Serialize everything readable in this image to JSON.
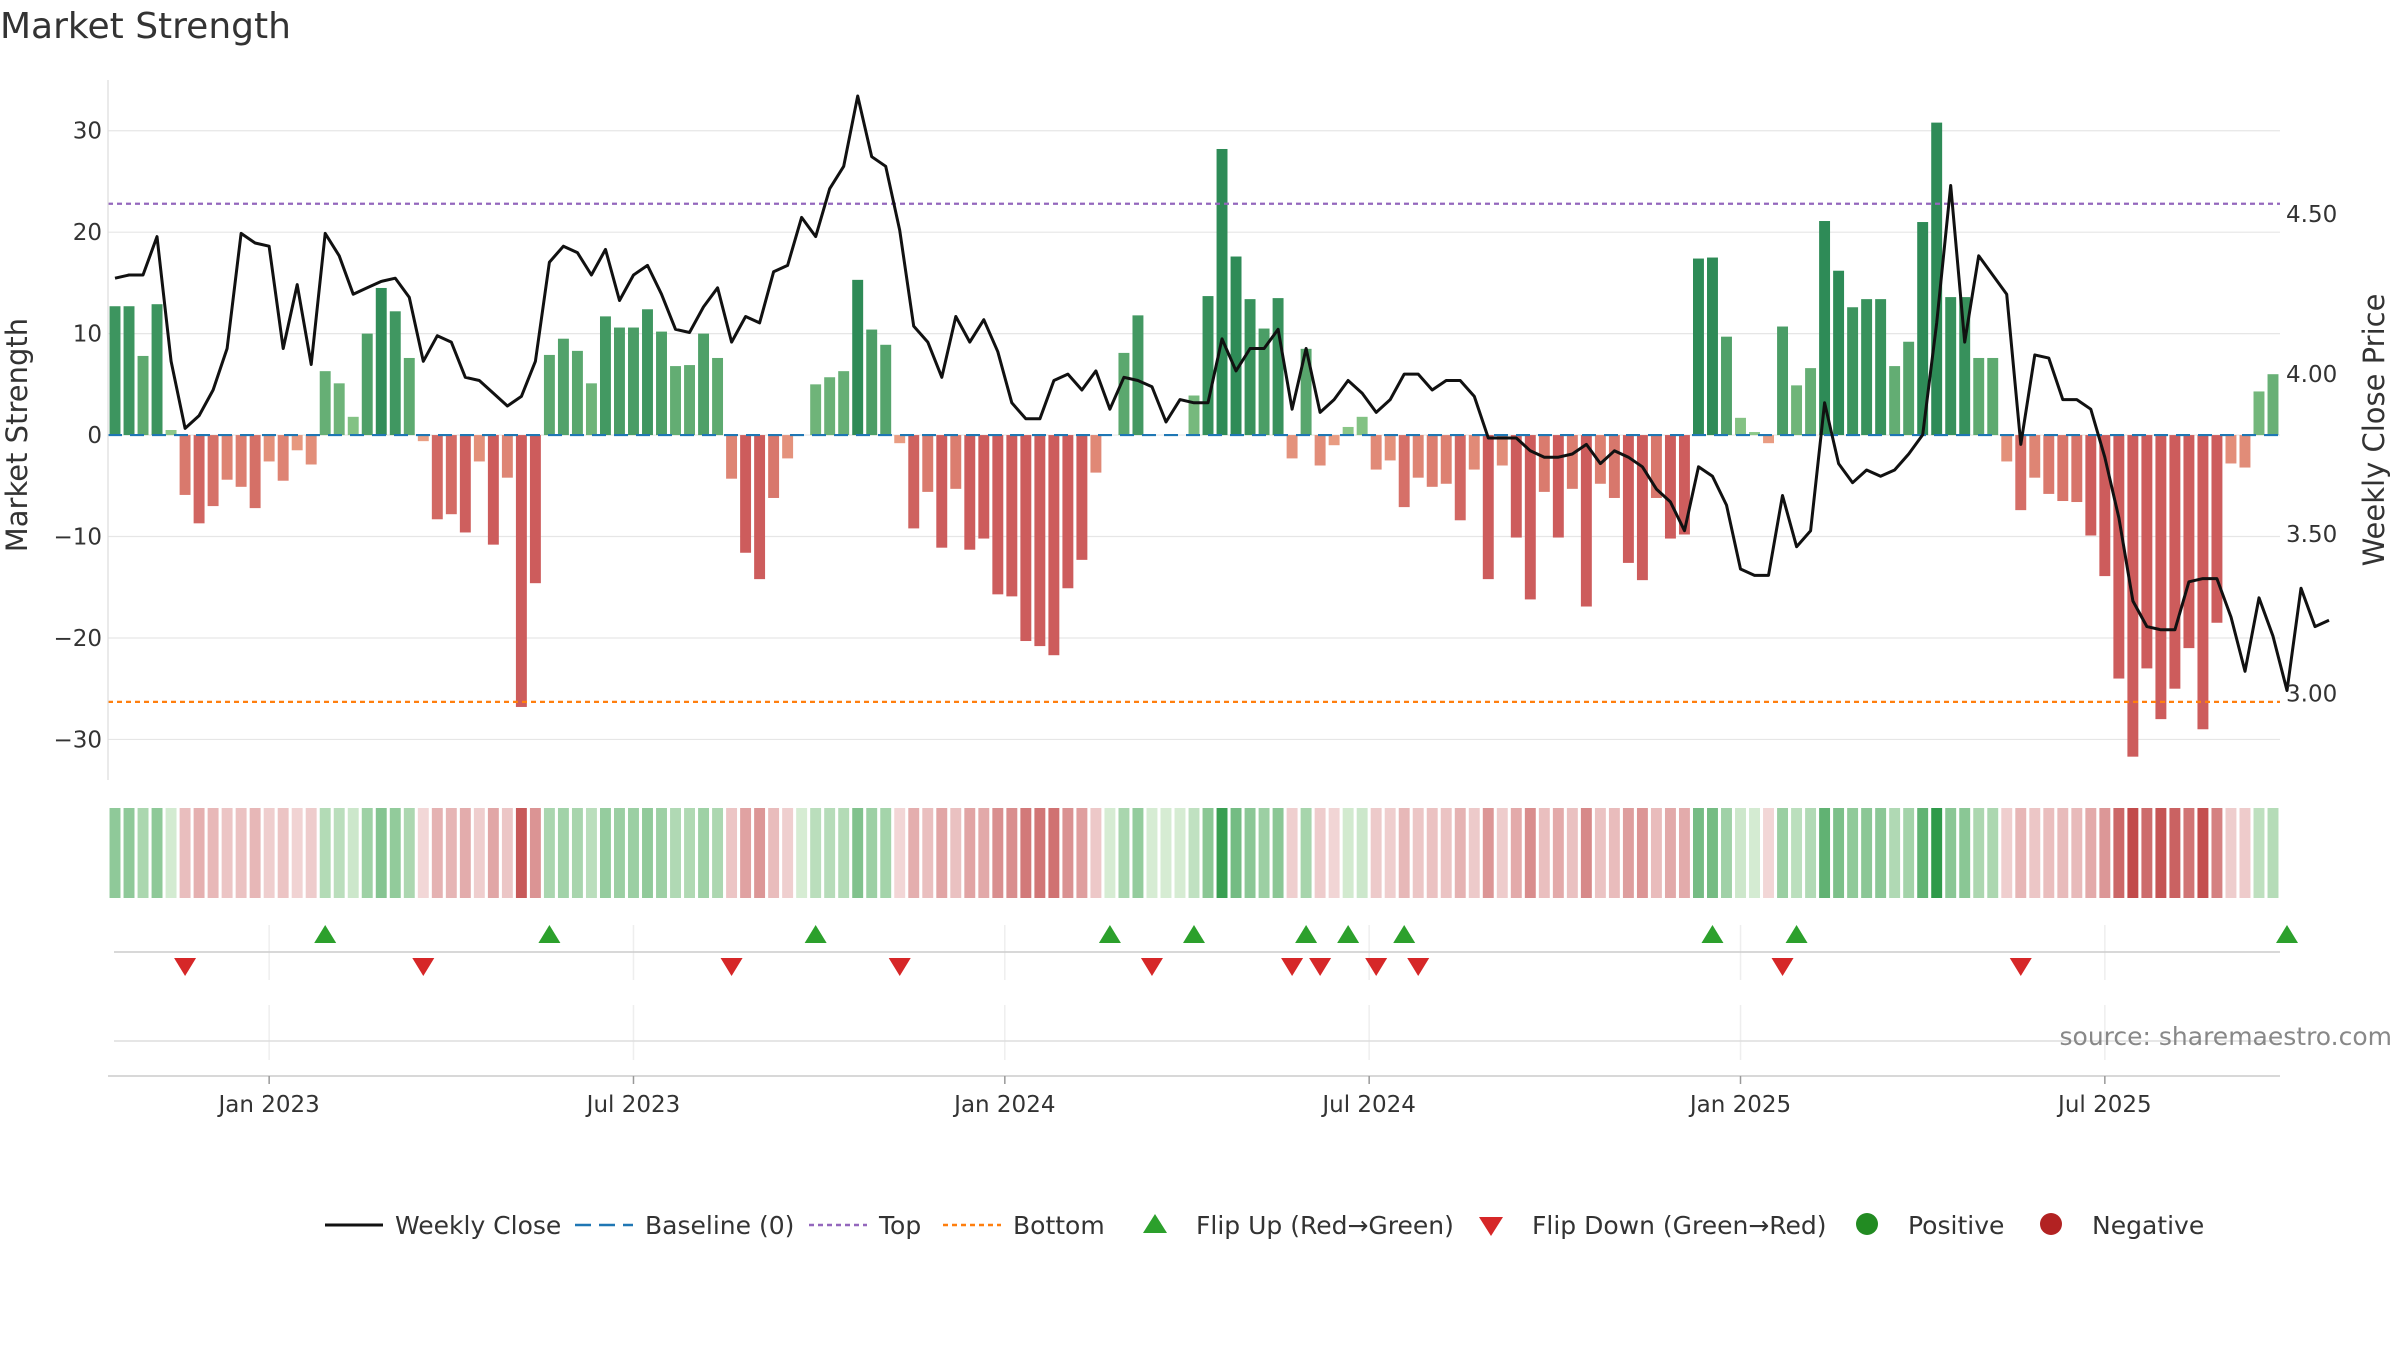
{
  "chart_data": {
    "type": "bar",
    "title": "Market Strength",
    "ylabel": "Market Strength",
    "y2label": "Weekly Close Price",
    "ylim": [
      -34,
      35
    ],
    "y2lim": [
      2.73,
      4.92
    ],
    "yticks": [
      -30,
      -20,
      -10,
      0,
      10,
      20,
      30
    ],
    "yticklabels": [
      "−30",
      "−20",
      "−10",
      "0",
      "10",
      "20",
      "30"
    ],
    "y2ticks": [
      3.0,
      3.5,
      4.0,
      4.5
    ],
    "y2ticklabels": [
      "3.00",
      "3.50",
      "4.00",
      "4.50"
    ],
    "xticks": [
      11,
      37,
      63.5,
      89.5,
      116,
      142
    ],
    "xticklabels": [
      "Jan 2023",
      "Jul 2023",
      "Jan 2024",
      "Jul 2024",
      "Jan 2025",
      "Jul 2025"
    ],
    "top_line": 22.8,
    "bottom_line": -26.3,
    "baseline": 0,
    "strength": [
      12.7,
      12.7,
      7.8,
      12.9,
      0.5,
      -5.9,
      -8.7,
      -7.0,
      -4.4,
      -5.1,
      -7.2,
      -2.6,
      -4.5,
      -1.5,
      -2.9,
      6.3,
      5.1,
      1.8,
      10.0,
      14.5,
      12.2,
      7.6,
      -0.6,
      -8.3,
      -7.8,
      -9.6,
      -2.6,
      -10.8,
      -4.2,
      -26.8,
      -14.6,
      7.9,
      9.5,
      8.3,
      5.1,
      11.7,
      10.6,
      10.6,
      12.4,
      10.2,
      6.8,
      6.9,
      10.0,
      7.6,
      -4.3,
      -11.6,
      -14.2,
      -6.2,
      -2.3,
      0,
      5.0,
      5.7,
      6.3,
      15.3,
      10.4,
      8.9,
      -0.8,
      -9.2,
      -5.6,
      -11.1,
      -5.3,
      -11.3,
      -10.2,
      -15.7,
      -15.9,
      -20.3,
      -20.8,
      -21.7,
      -15.1,
      -12.3,
      -3.7,
      0,
      8.1,
      11.8,
      0,
      0,
      0,
      3.9,
      13.7,
      28.2,
      17.6,
      13.4,
      10.5,
      13.5,
      -2.3,
      8.5,
      -3.0,
      -1.0,
      0.8,
      1.8,
      -3.4,
      -2.5,
      -7.1,
      -4.2,
      -5.1,
      -4.8,
      -8.4,
      -3.4,
      -14.2,
      -3.0,
      -10.1,
      -16.2,
      -5.6,
      -10.1,
      -5.3,
      -16.9,
      -4.8,
      -6.2,
      -12.6,
      -14.3,
      -6.2,
      -10.2,
      -9.8,
      17.4,
      17.5,
      9.7,
      1.7,
      0.3,
      -0.8,
      10.7,
      4.9,
      6.6,
      21.1,
      16.2,
      12.6,
      13.4,
      13.4,
      6.8,
      9.2,
      21.0,
      30.8,
      13.6,
      13.6,
      7.6,
      7.6,
      -2.6,
      -7.4,
      -4.2,
      -5.8,
      -6.5,
      -6.6,
      -9.9,
      -13.9,
      -24.0,
      -31.7,
      -23.0,
      -28.0,
      -25.0,
      -21.0,
      -29.0,
      -18.5,
      -2.8,
      -3.2,
      4.3,
      6.0
    ],
    "weekly_close": [
      4.3,
      4.31,
      4.31,
      4.43,
      4.04,
      3.83,
      3.87,
      3.95,
      4.08,
      4.44,
      4.41,
      4.4,
      4.08,
      4.28,
      4.03,
      4.44,
      4.37,
      4.25,
      4.27,
      4.29,
      4.3,
      4.24,
      4.04,
      4.12,
      4.1,
      3.99,
      3.98,
      3.94,
      3.9,
      3.93,
      4.04,
      4.35,
      4.4,
      4.38,
      4.31,
      4.39,
      4.23,
      4.31,
      4.34,
      4.25,
      4.14,
      4.13,
      4.21,
      4.27,
      4.1,
      4.18,
      4.16,
      4.32,
      4.34,
      4.49,
      4.43,
      4.58,
      4.65,
      4.87,
      4.68,
      4.65,
      4.45,
      4.15,
      4.1,
      3.99,
      4.18,
      4.1,
      4.17,
      4.07,
      3.91,
      3.86,
      3.86,
      3.98,
      4.0,
      3.95,
      4.01,
      3.89,
      3.99,
      3.98,
      3.96,
      3.85,
      3.92,
      3.91,
      3.91,
      4.11,
      4.01,
      4.08,
      4.08,
      4.14,
      3.89,
      4.08,
      3.88,
      3.92,
      3.98,
      3.94,
      3.88,
      3.92,
      4.0,
      4.0,
      3.95,
      3.98,
      3.98,
      3.93,
      3.8,
      3.8,
      3.8,
      3.76,
      3.74,
      3.74,
      3.75,
      3.78,
      3.72,
      3.76,
      3.74,
      3.71,
      3.64,
      3.6,
      3.51,
      3.71,
      3.68,
      3.59,
      3.39,
      3.37,
      3.37,
      3.62,
      3.46,
      3.51,
      3.91,
      3.72,
      3.66,
      3.7,
      3.68,
      3.7,
      3.75,
      3.81,
      4.16,
      4.59,
      4.1,
      4.37,
      4.31,
      4.25,
      3.78,
      4.06,
      4.05,
      3.92,
      3.92,
      3.89,
      3.74,
      3.55,
      3.29,
      3.21,
      3.2,
      3.2,
      3.35,
      3.36,
      3.36,
      3.24,
      3.07,
      3.3,
      3.18,
      3.01,
      3.33,
      3.21,
      3.23
    ],
    "flip_up": [
      15,
      31,
      50,
      71,
      77,
      85,
      88,
      92,
      114,
      120,
      155
    ],
    "flip_down": [
      5,
      22,
      44,
      56,
      74,
      84,
      86,
      90,
      93,
      119,
      136
    ],
    "color_positive": "#2e8b57",
    "color_negative": "#cd5c5c",
    "color_flip_up": "#2ca02c",
    "color_flip_down": "#d62728",
    "color_price": "#111111",
    "color_baseline": "#1f77b4",
    "color_top": "#9467bd",
    "color_bottom": "#ff7f0e",
    "legend": [
      {
        "key": "weekly-close",
        "label": "Weekly Close"
      },
      {
        "key": "baseline",
        "label": "Baseline (0)"
      },
      {
        "key": "top",
        "label": "Top"
      },
      {
        "key": "bottom",
        "label": "Bottom"
      },
      {
        "key": "flip-up",
        "label": "Flip Up (Red→Green)"
      },
      {
        "key": "flip-down",
        "label": "Flip Down (Green→Red)"
      },
      {
        "key": "positive",
        "label": "Positive"
      },
      {
        "key": "negative",
        "label": "Negative"
      }
    ],
    "source": "source: sharemaestro.com"
  }
}
